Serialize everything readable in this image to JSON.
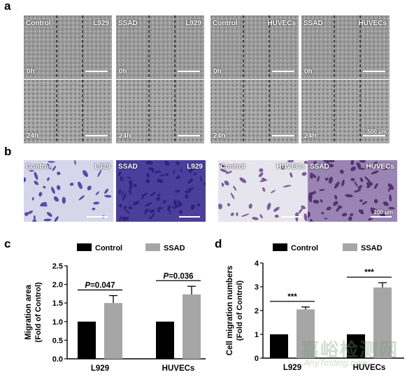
{
  "panels": {
    "a": "a",
    "b": "b",
    "c": "c",
    "d": "d"
  },
  "panel_a": {
    "tiles": [
      {
        "left": "Control",
        "right": "L929",
        "time": "0h"
      },
      {
        "left": "SSAD",
        "right": "L929",
        "time": "0h"
      },
      {
        "left": "Control",
        "right": "HUVECs",
        "time": "0h"
      },
      {
        "left": "SSAD",
        "right": "HUVECs",
        "time": "0h"
      },
      {
        "left": "",
        "right": "",
        "time": "24h"
      },
      {
        "left": "",
        "right": "",
        "time": "24h"
      },
      {
        "left": "",
        "right": "",
        "time": "24h"
      },
      {
        "left": "",
        "right": "",
        "time": "24h"
      }
    ],
    "scale_label": "500 μm"
  },
  "panel_b": {
    "tiles": [
      {
        "left": "Control",
        "right": "L929"
      },
      {
        "left": "SSAD",
        "right": "L929"
      },
      {
        "left": "Control",
        "right": "HUVECs"
      },
      {
        "left": "SSAD",
        "right": "HUVECs"
      }
    ],
    "scale_label": "200 μm"
  },
  "colors": {
    "control": "#000000",
    "ssad": "#a6a6a6"
  },
  "chart_data": [
    {
      "type": "bar",
      "categories": [
        "L929",
        "HUVECs"
      ],
      "series": [
        {
          "name": "Control",
          "values": [
            1.0,
            1.0
          ],
          "errors": [
            0,
            0
          ]
        },
        {
          "name": "SSAD",
          "values": [
            1.5,
            1.73
          ],
          "errors": [
            0.2,
            0.22
          ]
        }
      ],
      "ylabel": "Migration area",
      "ylabel2": "(Fold of Control)",
      "ylim": [
        0,
        2.5
      ],
      "yticks": [
        "0.0",
        "0.5",
        "1.0",
        "1.5",
        "2.0",
        "2.5"
      ],
      "annotations": [
        {
          "p": "P",
          "rest": "=0.047"
        },
        {
          "p": "P",
          "rest": "=0.036"
        }
      ],
      "legend_position": "top"
    },
    {
      "type": "bar",
      "categories": [
        "L929",
        "HUVECs"
      ],
      "series": [
        {
          "name": "Control",
          "values": [
            1.0,
            1.0
          ],
          "errors": [
            0,
            0
          ]
        },
        {
          "name": "SSAD",
          "values": [
            2.05,
            2.97
          ],
          "errors": [
            0.1,
            0.2
          ]
        }
      ],
      "ylabel": "Cell migration numbers",
      "ylabel2": "(Fold of Control)",
      "ylim": [
        0,
        4
      ],
      "yticks": [
        "0",
        "1",
        "2",
        "3",
        "4"
      ],
      "annotations": [
        {
          "p": "",
          "rest": "***"
        },
        {
          "p": "",
          "rest": "***"
        }
      ],
      "legend_position": "top"
    }
  ],
  "watermark": {
    "cn": "嘉峪检测网",
    "en": "AnyTesting.com"
  }
}
